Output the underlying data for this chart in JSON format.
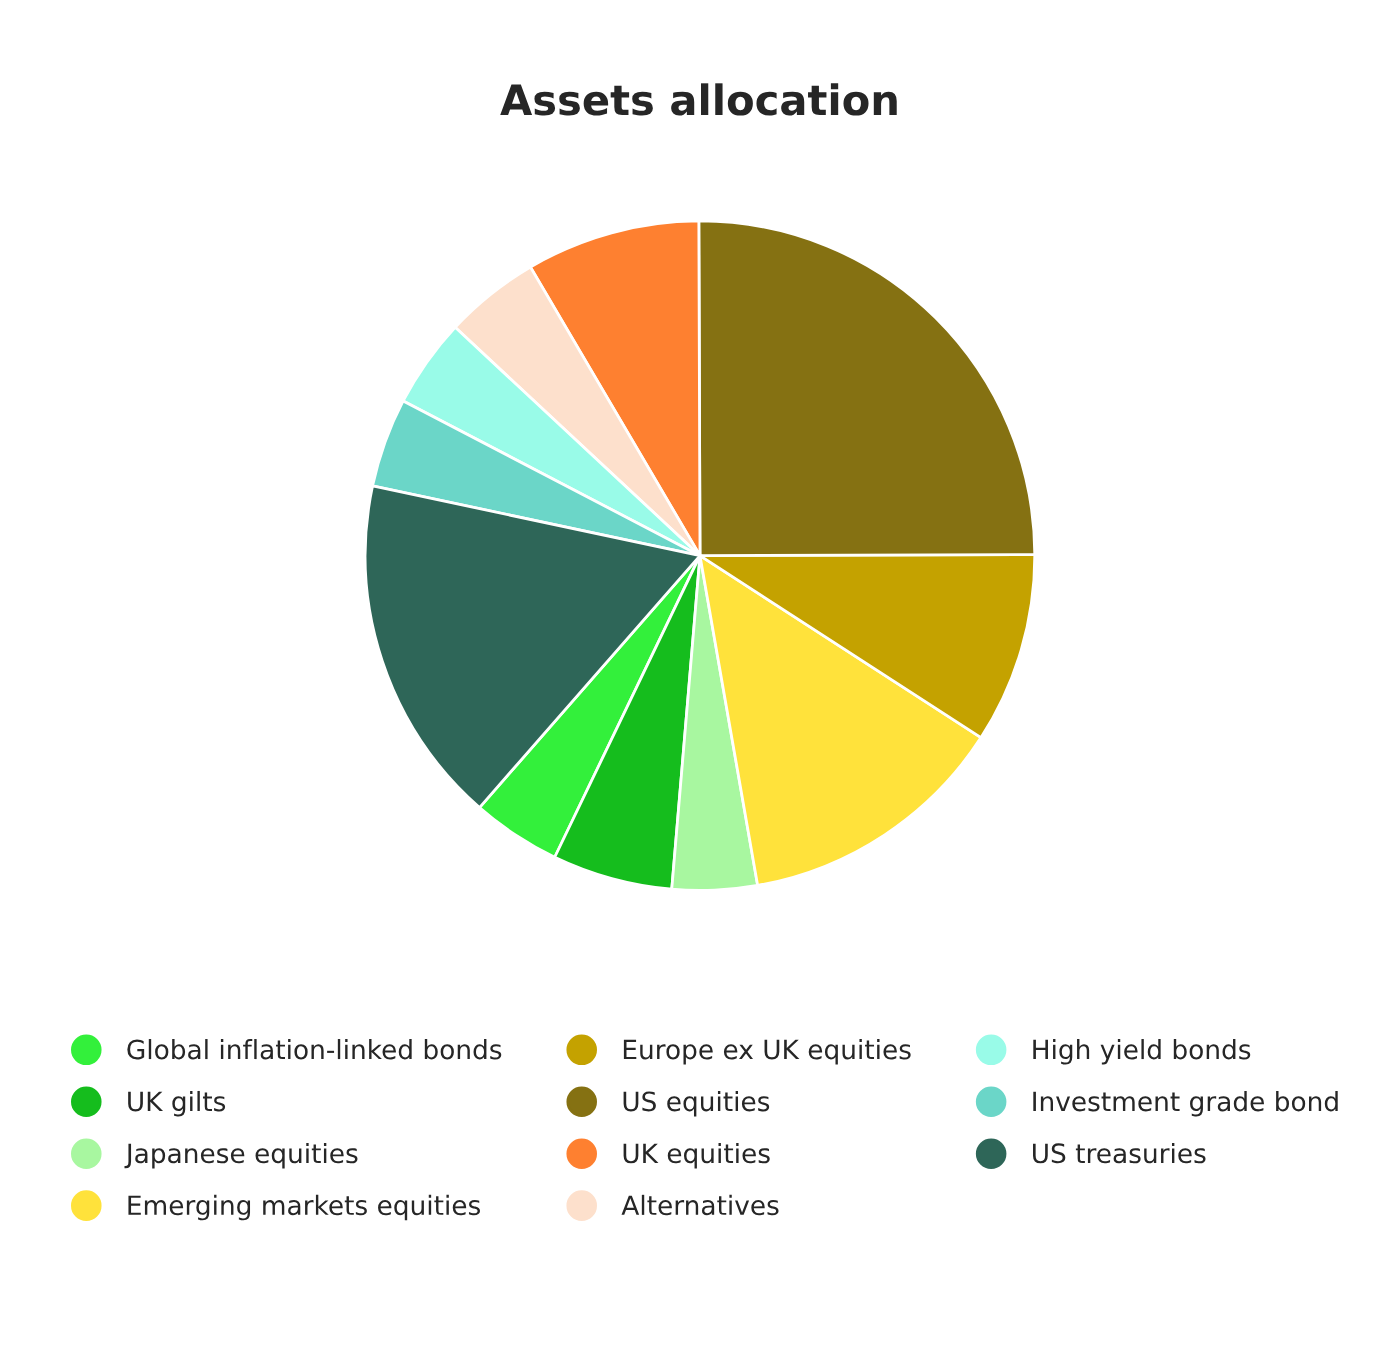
{
  "chart_data": {
    "type": "pie",
    "title": "Assets allocation",
    "categories": [
      "Global inflation-linked bonds",
      "UK gilts",
      "Japanese equities",
      "Emerging markets equities",
      "Europe ex UK equities",
      "US equities",
      "UK equities",
      "Alternatives",
      "High yield bonds",
      "Investment grade bond",
      "US treasuries"
    ],
    "values": [
      4.3,
      5.8,
      4.1,
      13.1,
      9.2,
      25,
      8.4,
      4.6,
      4.3,
      4.3,
      16.9
    ],
    "colors": [
      "#33f03b",
      "#15bd1d",
      "#a8f7a0",
      "#ffe23b",
      "#c4a200",
      "#857112",
      "#fe8030",
      "#fde0cc",
      "#99fbe8",
      "#6bd6c8",
      "#2e6658"
    ],
    "legend": "bottom"
  }
}
